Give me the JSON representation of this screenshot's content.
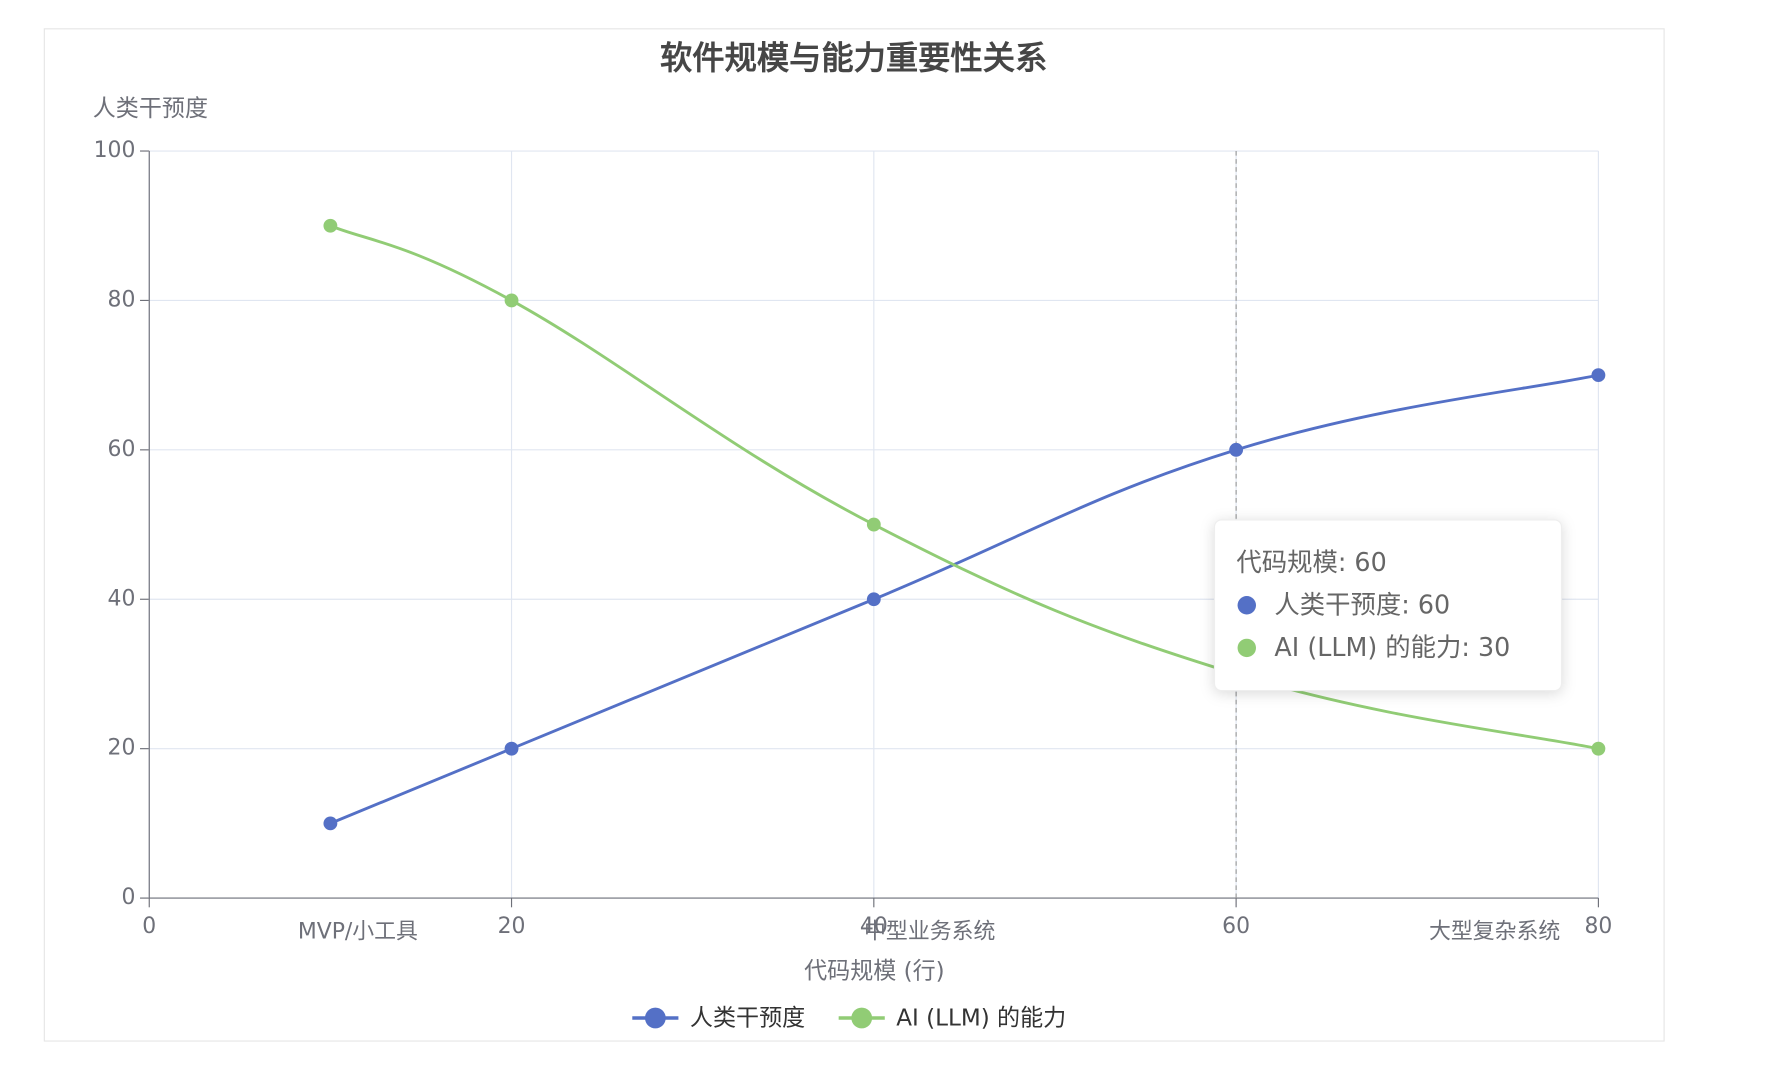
{
  "chart_data": {
    "type": "line",
    "title": "软件规模与能力重要性关系",
    "x_label": "代码规模 (行)",
    "y_label": "人类干预度",
    "x": [
      10,
      20,
      40,
      60,
      80
    ],
    "series": [
      {
        "name": "人类干预度",
        "color": "#5470c6",
        "values": [
          10,
          20,
          40,
          60,
          70
        ]
      },
      {
        "name": "AI (LLM) 的能力",
        "color": "#91cc75",
        "values": [
          90,
          80,
          50,
          30,
          20
        ]
      }
    ],
    "xlim": [
      0,
      80
    ],
    "xticks": [
      0,
      20,
      40,
      60,
      80
    ],
    "ylim": [
      0,
      100
    ],
    "yticks": [
      0,
      20,
      40,
      60,
      80,
      100
    ],
    "grid": true,
    "smooth": true,
    "legend": "bottom",
    "annotations": [
      "MVP/小工具",
      "中型业务系统",
      "大型复杂系统"
    ],
    "tooltip": {
      "pointer_x": 60,
      "title": "代码规模: 60",
      "items": [
        "人类干预度: 60",
        "AI (LLM) 的能力: 30"
      ]
    }
  }
}
